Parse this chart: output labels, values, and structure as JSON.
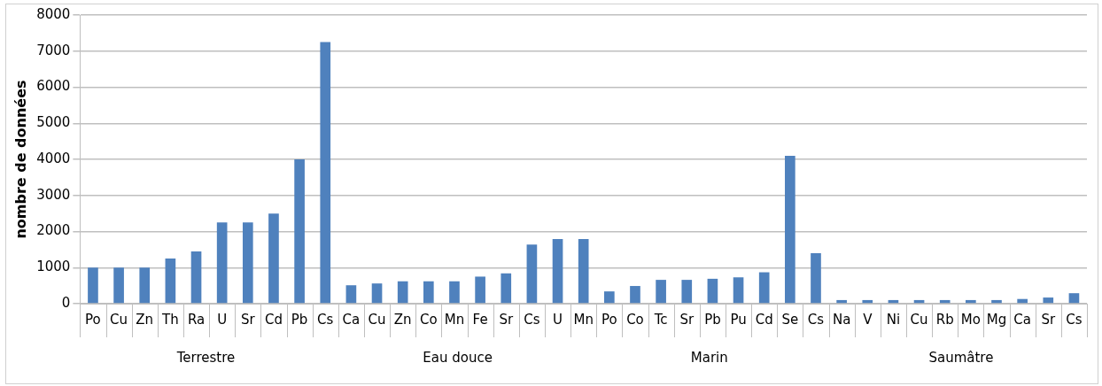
{
  "chart_data": {
    "type": "bar",
    "ylabel": "nombre de données",
    "categories": [
      "Po",
      "Cu",
      "Zn",
      "Th",
      "Ra",
      "U",
      "Sr",
      "Cd",
      "Pb",
      "Cs",
      "Ca",
      "Cu",
      "Zn",
      "Co",
      "Mn",
      "Fe",
      "Sr",
      "Cs",
      "U",
      "Mn",
      "Po",
      "Co",
      "Tc",
      "Sr",
      "Pb",
      "Pu",
      "Cd",
      "Se",
      "Cs",
      "Na",
      "V",
      "Ni",
      "Cu",
      "Rb",
      "Mo",
      "Mg",
      "Ca",
      "Sr",
      "Cs"
    ],
    "values": [
      1000,
      1000,
      1000,
      1250,
      1450,
      2250,
      2250,
      2500,
      4000,
      7250,
      510,
      560,
      620,
      620,
      620,
      750,
      840,
      1640,
      1790,
      1790,
      340,
      490,
      660,
      660,
      690,
      730,
      870,
      4100,
      1400,
      100,
      100,
      100,
      100,
      100,
      100,
      100,
      130,
      170,
      290
    ],
    "color": "#4f81bd",
    "ylim": [
      0,
      8000
    ],
    "yticks": [
      0,
      1000,
      2000,
      3000,
      4000,
      5000,
      6000,
      7000,
      8000
    ],
    "grid": "y",
    "annotations": [
      "Terrestre",
      "Eau douce",
      "Marin",
      "Saumâtre"
    ]
  }
}
